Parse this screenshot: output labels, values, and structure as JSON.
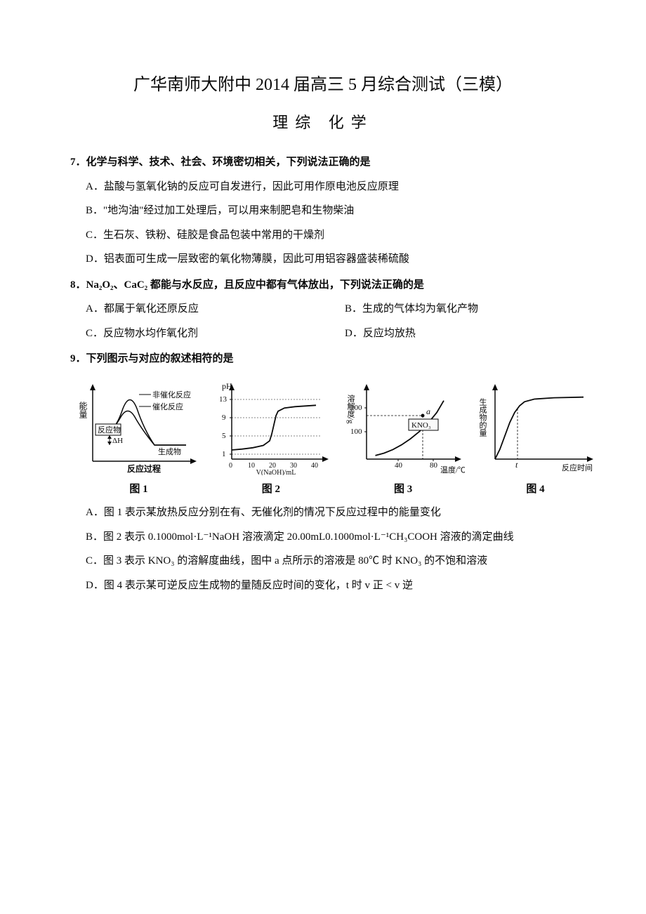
{
  "title": "广华南师大附中 2014 届高三 5 月综合测试（三模）",
  "subtitle": "理综  化学",
  "q7": {
    "stem": "7．化学与科学、技术、社会、环境密切相关，下列说法正确的是",
    "A": "A．盐酸与氢氧化钠的反应可自发进行，因此可用作原电池反应原理",
    "B": "B．\"地沟油\"经过加工处理后，可以用来制肥皂和生物柴油",
    "C": "C．生石灰、铁粉、硅胶是食品包装中常用的干燥剂",
    "D": "D．铝表面可生成一层致密的氧化物薄膜，因此可用铝容器盛装稀硫酸"
  },
  "q8": {
    "stem": "8．Na₂O₂、CaC₂ 都能与水反应，且反应中都有气体放出，下列说法正确的是",
    "A": "A．都属于氧化还原反应",
    "B": "B．生成的气体均为氧化产物",
    "C": "C．反应物水均作氧化剂",
    "D": "D．反应均放热"
  },
  "q9": {
    "stem": "9．下列图示与对应的叙述相符的是",
    "chart1": {
      "label": "图 1",
      "ylabel": "能量",
      "xlabel": "反应过程",
      "text_noncatalyst": "非催化反应",
      "text_catalyst": "催化反应",
      "text_reactant": "反应物",
      "text_deltaH": "ΔH",
      "text_product": "生成物",
      "line_color": "#000000",
      "bg": "#ffffff"
    },
    "chart2": {
      "label": "图 2",
      "ylabel": "pH",
      "xlabel": "V(NaOH)/mL",
      "y_ticks": [
        1,
        5,
        9,
        13
      ],
      "x_ticks": [
        0,
        10,
        20,
        30,
        40
      ],
      "curve_points": [
        [
          0,
          3
        ],
        [
          5,
          3.2
        ],
        [
          10,
          3.5
        ],
        [
          15,
          4
        ],
        [
          18,
          5
        ],
        [
          19,
          6.5
        ],
        [
          20,
          8.5
        ],
        [
          21,
          10.5
        ],
        [
          22,
          11.5
        ],
        [
          25,
          12.2
        ],
        [
          30,
          12.5
        ],
        [
          40,
          12.8
        ]
      ],
      "line_color": "#000000"
    },
    "chart3": {
      "label": "图 3",
      "ylabel": "溶解度/g",
      "xlabel": "温度/℃",
      "y_ticks": [
        100,
        200
      ],
      "x_ticks": [
        40,
        80
      ],
      "text_kno3": "KNO₃",
      "point_a": "a",
      "curve_points": [
        [
          10,
          15
        ],
        [
          20,
          25
        ],
        [
          30,
          40
        ],
        [
          40,
          60
        ],
        [
          50,
          85
        ],
        [
          60,
          115
        ],
        [
          70,
          150
        ],
        [
          80,
          195
        ],
        [
          88,
          245
        ]
      ],
      "line_color": "#000000"
    },
    "chart4": {
      "label": "图 4",
      "ylabel": "生成物的量",
      "xlabel": "反应时间",
      "x_mark": "t",
      "curve_points": [
        [
          0,
          0
        ],
        [
          5,
          15
        ],
        [
          10,
          35
        ],
        [
          15,
          55
        ],
        [
          20,
          70
        ],
        [
          25,
          80
        ],
        [
          30,
          86
        ],
        [
          40,
          90
        ],
        [
          60,
          92
        ],
        [
          90,
          93
        ]
      ],
      "line_color": "#000000"
    },
    "A": "A．图 1 表示某放热反应分别在有、无催化剂的情况下反应过程中的能量变化",
    "B": "B．图 2 表示 0.1000mol·L⁻¹NaOH 溶液滴定 20.00mL0.1000mol·L⁻¹CH₃COOH 溶液的滴定曲线",
    "C": "C．图 3 表示 KNO₃ 的溶解度曲线，图中 a 点所示的溶液是 80℃ 时 KNO₃ 的不饱和溶液",
    "D": "D．图 4 表示某可逆反应生成物的量随反应时间的变化，t 时  v 正 < v 逆"
  },
  "colors": {
    "text": "#000000",
    "bg": "#ffffff",
    "axis": "#000000"
  }
}
